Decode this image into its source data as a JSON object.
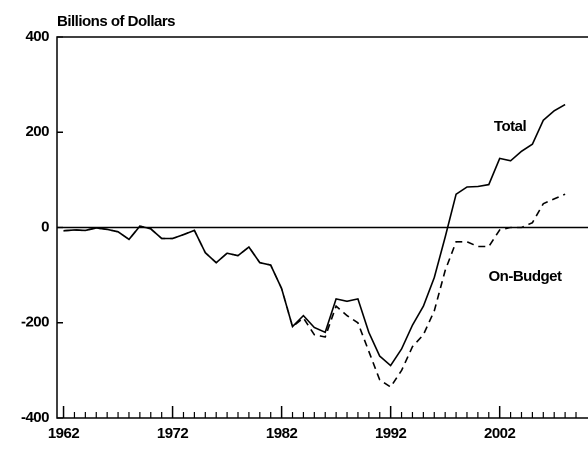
{
  "chart_data": {
    "type": "line",
    "y_axis_label": "Billions of Dollars",
    "x": [
      1962,
      1963,
      1964,
      1965,
      1966,
      1967,
      1968,
      1969,
      1970,
      1971,
      1972,
      1973,
      1974,
      1975,
      1976,
      1977,
      1978,
      1979,
      1980,
      1981,
      1982,
      1983,
      1984,
      1985,
      1986,
      1987,
      1988,
      1989,
      1990,
      1991,
      1992,
      1993,
      1994,
      1995,
      1996,
      1997,
      1998,
      1999,
      2000,
      2001,
      2002,
      2003,
      2004,
      2005,
      2006,
      2007,
      2008
    ],
    "series": [
      {
        "name": "Total",
        "color": "#000000",
        "dash": false,
        "values": [
          -7,
          -5,
          -6,
          -1,
          -4,
          -9,
          -25,
          3,
          -3,
          -23,
          -23,
          -15,
          -6,
          -53,
          -74,
          -54,
          -59,
          -41,
          -74,
          -79,
          -128,
          -208,
          -185,
          -210,
          -220,
          -150,
          -155,
          -150,
          -220,
          -270,
          -290,
          -255,
          -205,
          -165,
          -105,
          -20,
          70,
          85,
          86,
          90,
          145,
          140,
          160,
          175,
          225,
          245,
          258
        ]
      },
      {
        "name": "On-Budget",
        "color": "#000000",
        "dash": true,
        "values": [
          -7,
          -5,
          -6,
          -1,
          -4,
          -9,
          -25,
          3,
          -3,
          -23,
          -23,
          -15,
          -6,
          -53,
          -74,
          -54,
          -59,
          -41,
          -74,
          -79,
          -128,
          -208,
          -190,
          -225,
          -230,
          -165,
          -185,
          -200,
          -260,
          -320,
          -335,
          -300,
          -250,
          -225,
          -175,
          -90,
          -30,
          -30,
          -40,
          -40,
          -5,
          0,
          0,
          10,
          50,
          60,
          70
        ]
      }
    ],
    "xlim": [
      1961.4,
      2010.1
    ],
    "xticks": [
      1962,
      1972,
      1982,
      1992,
      2002
    ],
    "xminor_ticks": [
      1963,
      1964,
      1965,
      1966,
      1967,
      1968,
      1969,
      1970,
      1971,
      1973,
      1974,
      1975,
      1976,
      1977,
      1978,
      1979,
      1980,
      1981,
      1983,
      1984,
      1985,
      1986,
      1987,
      1988,
      1989,
      1990,
      1991,
      1993,
      1994,
      1995,
      1996,
      1997,
      1998,
      1999,
      2000,
      2001,
      2003,
      2004,
      2005,
      2006,
      2007,
      2008,
      2009
    ],
    "ylim": [
      -400,
      400
    ],
    "yticks": [
      -400,
      -200,
      0,
      200,
      400
    ],
    "zero_line": true
  }
}
